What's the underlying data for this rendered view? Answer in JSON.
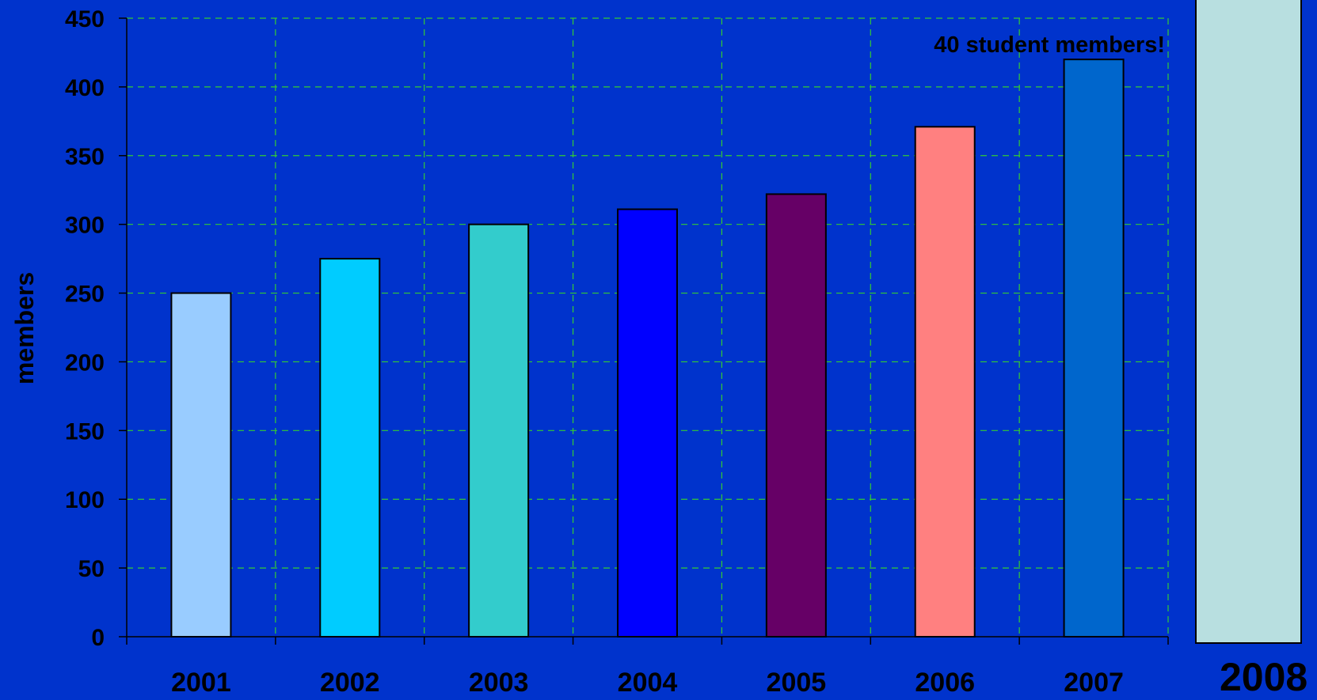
{
  "chart_data": {
    "type": "bar",
    "categories": [
      "2001",
      "2002",
      "2003",
      "2004",
      "2005",
      "2006",
      "2007"
    ],
    "values": [
      250,
      275,
      300,
      311,
      322,
      371,
      420
    ],
    "bar_colors": [
      "#99ccff",
      "#00ccff",
      "#33cccc",
      "#0000ff",
      "#660066",
      "#ff8080",
      "#0066cc"
    ],
    "ylabel": "members",
    "xlabel": "",
    "title": "",
    "ylim": [
      0,
      450
    ],
    "yticks": [
      0,
      50,
      100,
      150,
      200,
      250,
      300,
      350,
      400,
      450
    ],
    "grid": true,
    "grid_color": "#33cc33",
    "background": "#0033cc",
    "annotation": "40 student members!"
  },
  "extra_bar": {
    "label": "2008",
    "color": "#b8dfe0"
  }
}
